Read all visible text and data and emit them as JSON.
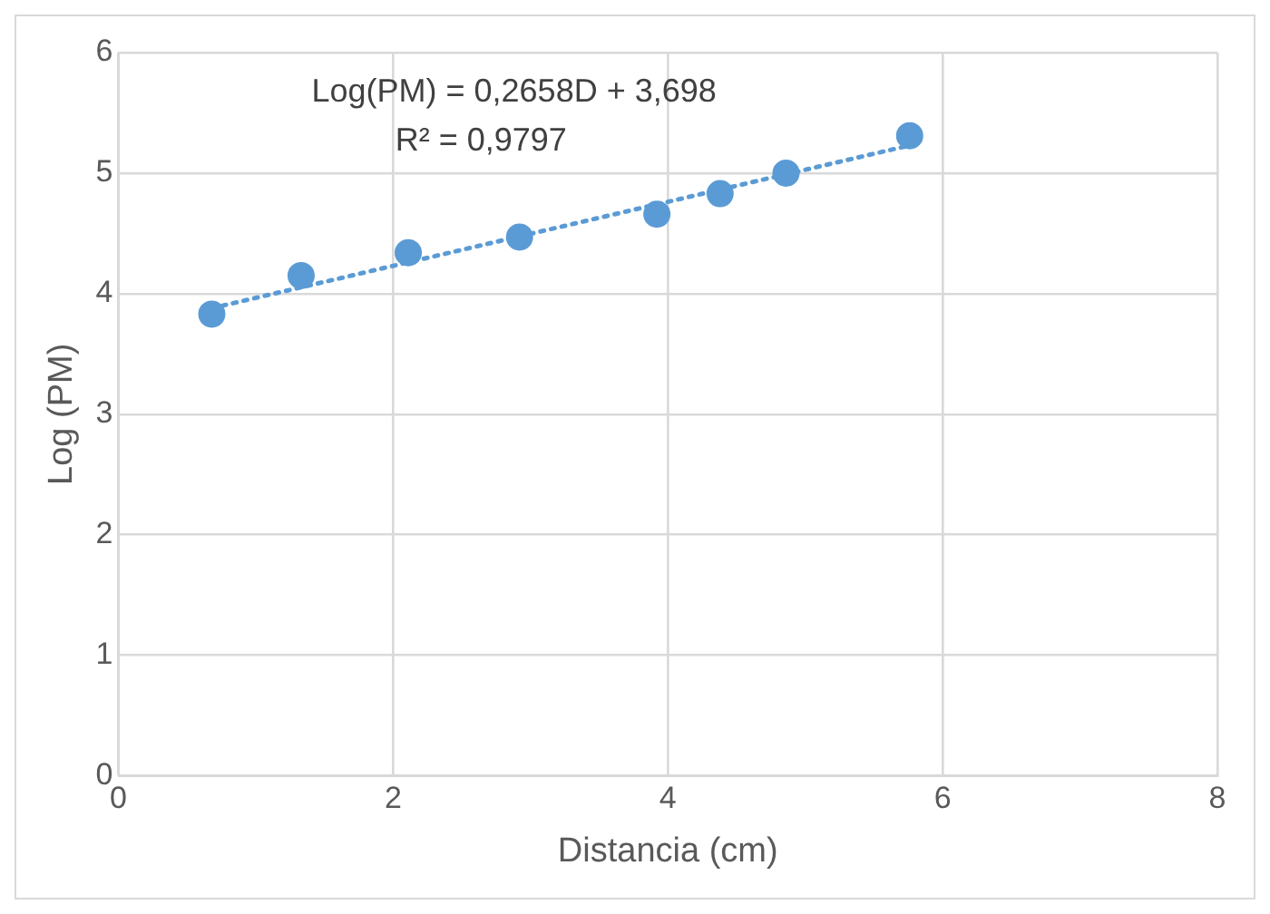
{
  "chart_data": {
    "type": "scatter",
    "xlabel": "Distancia (cm)",
    "ylabel": "Log (PM)",
    "xlim": [
      0,
      8
    ],
    "xticks": [
      0,
      2,
      4,
      6,
      8
    ],
    "ylim": [
      0,
      6
    ],
    "yticks": [
      0,
      1,
      2,
      3,
      4,
      5,
      6
    ],
    "grid": true,
    "legend": false,
    "series": [
      {
        "color": "#5b9bd5",
        "marker": "circle",
        "x": [
          0.68,
          1.33,
          2.11,
          2.92,
          3.92,
          4.38,
          4.86,
          5.76
        ],
        "values": [
          3.83,
          4.15,
          4.34,
          4.47,
          4.66,
          4.83,
          5.0,
          5.31
        ]
      },
      {
        "type": "line",
        "color": "#5b9bd5",
        "marker": "none",
        "line_style": "dotted",
        "x": [
          0.68,
          5.76
        ],
        "values": [
          3.88,
          5.23
        ]
      }
    ],
    "annotations": [
      "Log(PM) = 0,2658D + 3,698",
      "R² = 0,9797"
    ]
  }
}
